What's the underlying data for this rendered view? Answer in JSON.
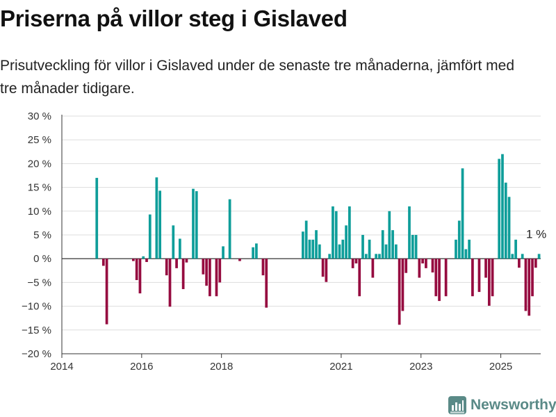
{
  "title": "Priserna på villor steg i Gislaved",
  "subtitle": "Prisutveckling för villor i Gislaved under de senaste tre månaderna, jämfört med tre månader tidigare.",
  "brand": "Newsworthy",
  "colors": {
    "positive": "#0f9e9a",
    "negative": "#960c40",
    "zero_line": "#222222",
    "grid": "#dddddd",
    "brand": "#5a8a87"
  },
  "chart_data": {
    "type": "bar",
    "x_ticks": [
      "2014",
      "2016",
      "2018",
      "2021",
      "2023",
      "2025"
    ],
    "y_ticks": [
      "−20 %",
      "−15 %",
      "−10 %",
      "−5 %",
      "0 %",
      "5 %",
      "10 %",
      "15 %",
      "20 %",
      "25 %",
      "30 %"
    ],
    "ylim": [
      -20,
      30
    ],
    "xlim": [
      "2014-01",
      "2025-12"
    ],
    "unit": "%",
    "last_value_label": "1 %",
    "series": [
      {
        "points": [
          [
            "2014-11",
            17
          ],
          [
            "2015-01",
            -1.5
          ],
          [
            "2015-02",
            -13.8
          ],
          [
            "2015-10",
            -0.5
          ],
          [
            "2015-11",
            -4.5
          ],
          [
            "2015-12",
            -7.3
          ],
          [
            "2016-01",
            0.5
          ],
          [
            "2016-02",
            -0.7
          ],
          [
            "2016-03",
            9.3
          ],
          [
            "2016-05",
            17.1
          ],
          [
            "2016-06",
            14.3
          ],
          [
            "2016-08",
            -3.5
          ],
          [
            "2016-09",
            -10.1
          ],
          [
            "2016-10",
            7
          ],
          [
            "2016-11",
            -2
          ],
          [
            "2016-12",
            4.2
          ],
          [
            "2017-01",
            -6.4
          ],
          [
            "2017-02",
            -0.8
          ],
          [
            "2017-04",
            14.7
          ],
          [
            "2017-05",
            14.2
          ],
          [
            "2017-07",
            -3.3
          ],
          [
            "2017-08",
            -5.7
          ],
          [
            "2017-09",
            -7.9
          ],
          [
            "2017-11",
            -7.9
          ],
          [
            "2017-12",
            -5
          ],
          [
            "2018-01",
            2.6
          ],
          [
            "2018-03",
            12.5
          ],
          [
            "2018-06",
            -0.5
          ],
          [
            "2018-10",
            2.4
          ],
          [
            "2018-11",
            3.2
          ],
          [
            "2019-01",
            -3.5
          ],
          [
            "2019-02",
            -10.3
          ],
          [
            "2020-01",
            5.7
          ],
          [
            "2020-02",
            8
          ],
          [
            "2020-03",
            4
          ],
          [
            "2020-04",
            4
          ],
          [
            "2020-05",
            6
          ],
          [
            "2020-06",
            3
          ],
          [
            "2020-07",
            -3.8
          ],
          [
            "2020-08",
            -4.9
          ],
          [
            "2020-09",
            1
          ],
          [
            "2020-10",
            11
          ],
          [
            "2020-11",
            10
          ],
          [
            "2020-12",
            3
          ],
          [
            "2021-01",
            4
          ],
          [
            "2021-02",
            7
          ],
          [
            "2021-03",
            11
          ],
          [
            "2021-04",
            -2
          ],
          [
            "2021-05",
            -1
          ],
          [
            "2021-06",
            -7.9
          ],
          [
            "2021-07",
            5
          ],
          [
            "2021-08",
            1
          ],
          [
            "2021-09",
            4
          ],
          [
            "2021-10",
            -4
          ],
          [
            "2021-11",
            1
          ],
          [
            "2021-12",
            1
          ],
          [
            "2022-01",
            6
          ],
          [
            "2022-02",
            3
          ],
          [
            "2022-03",
            10
          ],
          [
            "2022-04",
            6
          ],
          [
            "2022-05",
            3
          ],
          [
            "2022-06",
            -13.9
          ],
          [
            "2022-07",
            -11
          ],
          [
            "2022-08",
            -3
          ],
          [
            "2022-09",
            11
          ],
          [
            "2022-10",
            5
          ],
          [
            "2022-11",
            5
          ],
          [
            "2022-12",
            -4
          ],
          [
            "2023-01",
            -1
          ],
          [
            "2023-02",
            -2
          ],
          [
            "2023-04",
            -2.9
          ],
          [
            "2023-05",
            -7.9
          ],
          [
            "2023-06",
            -8.9
          ],
          [
            "2023-08",
            -7.9
          ],
          [
            "2023-11",
            4
          ],
          [
            "2023-12",
            8
          ],
          [
            "2024-01",
            19
          ],
          [
            "2024-02",
            2
          ],
          [
            "2024-03",
            4
          ],
          [
            "2024-04",
            -7.9
          ],
          [
            "2024-06",
            -7
          ],
          [
            "2024-08",
            -4
          ],
          [
            "2024-09",
            -9.9
          ],
          [
            "2024-10",
            -7.9
          ],
          [
            "2024-12",
            21
          ],
          [
            "2025-01",
            22
          ],
          [
            "2025-02",
            16
          ],
          [
            "2025-03",
            13
          ],
          [
            "2025-04",
            1
          ],
          [
            "2025-05",
            4
          ],
          [
            "2025-06",
            -1.9
          ],
          [
            "2025-07",
            1
          ],
          [
            "2025-08",
            -11
          ],
          [
            "2025-09",
            -12
          ],
          [
            "2025-10",
            -7.9
          ],
          [
            "2025-11",
            -1.9
          ],
          [
            "2025-12",
            1
          ]
        ]
      }
    ]
  }
}
